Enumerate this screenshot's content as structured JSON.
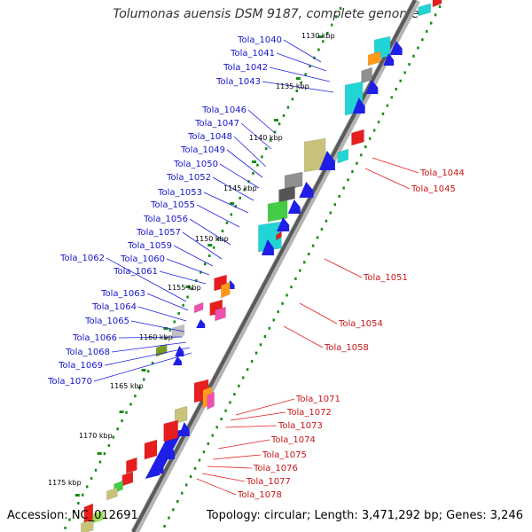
{
  "title": "Tolumonas auensis DSM 9187, complete genome",
  "accession_text": "Accession: NC_012691",
  "summary_text": "Topology: circular; Length: 3,471,292 bp; Genes: 3,246",
  "colors": {
    "forward_gene": "#1e1ee6",
    "reverse_gene": "#e61e1e",
    "label_forward": "#1515c8",
    "label_reverse": "#c81515",
    "backbone": "#888888",
    "tick": "#1a8a1a",
    "cyan": "#22d4d4",
    "orange": "#ff9a1a",
    "khaki": "#c8c27a",
    "green": "#44cc44",
    "magenta": "#f050b0",
    "gray": "#909090",
    "olive": "#7a9a22",
    "lime": "#9ade55"
  },
  "kbp_labels": [
    "1130 kbp",
    "1135 kbp",
    "1140 kbp",
    "1145 kbp",
    "1150 kbp",
    "1155 kbp",
    "1160 kbp",
    "1165 kbp",
    "1170 kbp",
    "1175 kbp"
  ],
  "forward_labels": [
    "Tola_1040",
    "Tola_1041",
    "Tola_1042",
    "Tola_1043",
    "Tola_1046",
    "Tola_1047",
    "Tola_1048",
    "Tola_1049",
    "Tola_1050",
    "Tola_1052",
    "Tola_1053",
    "Tola_1055",
    "Tola_1056",
    "Tola_1057",
    "Tola_1059",
    "Tola_1060",
    "Tola_1061",
    "Tola_1062",
    "Tola_1063",
    "Tola_1064",
    "Tola_1065",
    "Tola_1066",
    "Tola_1068",
    "Tola_1069",
    "Tola_1070"
  ],
  "reverse_labels": [
    "Tola_1044",
    "Tola_1045",
    "Tola_1051",
    "Tola_1054",
    "Tola_1058",
    "Tola_1071",
    "Tola_1072",
    "Tola_1073",
    "Tola_1074",
    "Tola_1075",
    "Tola_1076",
    "Tola_1077",
    "Tola_1078"
  ]
}
